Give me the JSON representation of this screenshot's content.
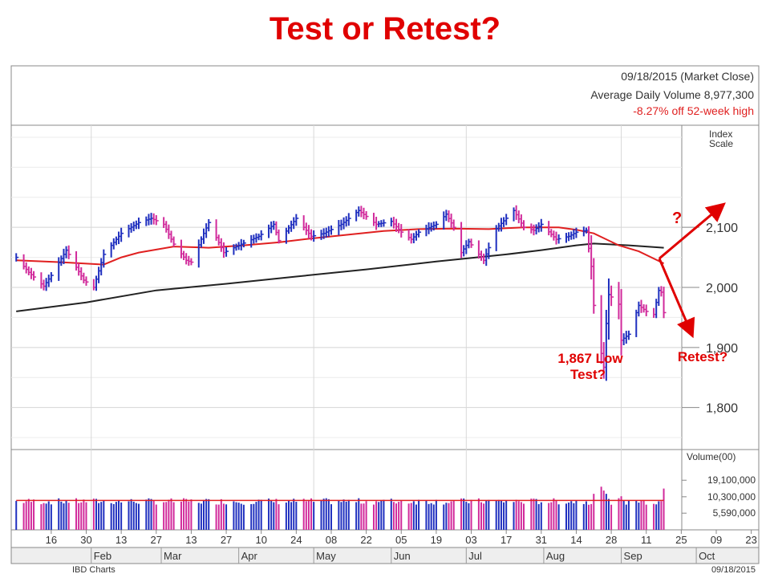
{
  "slide": {
    "title": "Test or Retest?"
  },
  "header": {
    "date_line": "09/18/2015 (Market Close)",
    "volume_line": "Average Daily Volume 8,977,300",
    "off_high_line": "-8.27% off 52-week high"
  },
  "footer": {
    "source": "IBD Charts",
    "date": "09/18/2015"
  },
  "colors": {
    "up": "#1f2fbf",
    "down": "#d12a9b",
    "ma50": "#e02020",
    "ma200": "#222222",
    "annotation": "#e00000"
  },
  "chart_data": {
    "type": "bar",
    "subtype": "ohlc",
    "y_axis_label": "Index\nScale",
    "ylim": [
      1730,
      2270
    ],
    "yticks": [
      "2,100",
      "2,000",
      "1,900",
      "1,800"
    ],
    "ytick_values": [
      2100,
      2000,
      1900,
      1800
    ],
    "x_range": [
      "2014-12-31",
      "2015-10-26"
    ],
    "x_day_ticks": [
      {
        "date": "2015-01-16",
        "label": "16"
      },
      {
        "date": "2015-01-30",
        "label": "30"
      },
      {
        "date": "2015-02-13",
        "label": "13"
      },
      {
        "date": "2015-02-27",
        "label": "27"
      },
      {
        "date": "2015-03-13",
        "label": "13"
      },
      {
        "date": "2015-03-27",
        "label": "27"
      },
      {
        "date": "2015-04-10",
        "label": "10"
      },
      {
        "date": "2015-04-24",
        "label": "24"
      },
      {
        "date": "2015-05-08",
        "label": "08"
      },
      {
        "date": "2015-05-22",
        "label": "22"
      },
      {
        "date": "2015-06-05",
        "label": "05"
      },
      {
        "date": "2015-06-19",
        "label": "19"
      },
      {
        "date": "2015-07-03",
        "label": "03"
      },
      {
        "date": "2015-07-17",
        "label": "17"
      },
      {
        "date": "2015-07-31",
        "label": "31"
      },
      {
        "date": "2015-08-14",
        "label": "14"
      },
      {
        "date": "2015-08-28",
        "label": "28"
      },
      {
        "date": "2015-09-11",
        "label": "11"
      },
      {
        "date": "2015-09-25",
        "label": "25"
      },
      {
        "date": "2015-10-09",
        "label": "09"
      },
      {
        "date": "2015-10-23",
        "label": "23"
      }
    ],
    "x_month_ticks": [
      {
        "date": "2015-02-01",
        "label": "Feb"
      },
      {
        "date": "2015-03-01",
        "label": "Mar"
      },
      {
        "date": "2015-04-01",
        "label": "Apr"
      },
      {
        "date": "2015-05-01",
        "label": "May"
      },
      {
        "date": "2015-06-01",
        "label": "Jun"
      },
      {
        "date": "2015-07-01",
        "label": "Jul"
      },
      {
        "date": "2015-08-01",
        "label": "Aug"
      },
      {
        "date": "2015-09-01",
        "label": "Sep"
      },
      {
        "date": "2015-10-01",
        "label": "Oct"
      }
    ],
    "price_keypoints": [
      [
        "2015-01-02",
        2050
      ],
      [
        "2015-01-07",
        2025
      ],
      [
        "2015-01-13",
        2002
      ],
      [
        "2015-01-16",
        2020
      ],
      [
        "2015-01-22",
        2062
      ],
      [
        "2015-01-29",
        2012
      ],
      [
        "2015-02-02",
        2000
      ],
      [
        "2015-02-06",
        2055
      ],
      [
        "2015-02-13",
        2090
      ],
      [
        "2015-02-20",
        2108
      ],
      [
        "2015-02-25",
        2115
      ],
      [
        "2015-03-02",
        2105
      ],
      [
        "2015-03-06",
        2072
      ],
      [
        "2015-03-11",
        2045
      ],
      [
        "2015-03-13",
        2042
      ],
      [
        "2015-03-18",
        2090
      ],
      [
        "2015-03-20",
        2108
      ],
      [
        "2015-03-26",
        2058
      ],
      [
        "2015-04-02",
        2072
      ],
      [
        "2015-04-09",
        2085
      ],
      [
        "2015-04-15",
        2105
      ],
      [
        "2015-04-17",
        2078
      ],
      [
        "2015-04-24",
        2115
      ],
      [
        "2015-04-30",
        2085
      ],
      [
        "2015-05-05",
        2090
      ],
      [
        "2015-05-12",
        2105
      ],
      [
        "2015-05-19",
        2128
      ],
      [
        "2015-05-26",
        2105
      ],
      [
        "2015-06-01",
        2110
      ],
      [
        "2015-06-05",
        2092
      ],
      [
        "2015-06-09",
        2080
      ],
      [
        "2015-06-12",
        2092
      ],
      [
        "2015-06-19",
        2105
      ],
      [
        "2015-06-23",
        2122
      ],
      [
        "2015-06-26",
        2100
      ],
      [
        "2015-06-29",
        2058
      ],
      [
        "2015-07-02",
        2076
      ],
      [
        "2015-07-08",
        2045
      ],
      [
        "2015-07-13",
        2098
      ],
      [
        "2015-07-20",
        2128
      ],
      [
        "2015-07-24",
        2100
      ],
      [
        "2015-07-28",
        2095
      ],
      [
        "2015-07-31",
        2105
      ],
      [
        "2015-08-06",
        2080
      ],
      [
        "2015-08-11",
        2085
      ],
      [
        "2015-08-14",
        2092
      ],
      [
        "2015-08-18",
        2095
      ],
      [
        "2015-08-20",
        2035
      ],
      [
        "2015-08-21",
        1970
      ],
      [
        "2015-08-24",
        1890
      ],
      [
        "2015-08-25",
        1867
      ],
      [
        "2015-08-26",
        1940
      ],
      [
        "2015-08-27",
        1988
      ],
      [
        "2015-08-31",
        1972
      ],
      [
        "2015-09-01",
        1912
      ],
      [
        "2015-09-04",
        1922
      ],
      [
        "2015-09-08",
        1970
      ],
      [
        "2015-09-11",
        1960
      ],
      [
        "2015-09-14",
        1955
      ],
      [
        "2015-09-16",
        1995
      ],
      [
        "2015-09-17",
        1992
      ],
      [
        "2015-09-18",
        1958
      ]
    ],
    "ma50": [
      [
        "2015-01-02",
        2045
      ],
      [
        "2015-01-20",
        2042
      ],
      [
        "2015-02-06",
        2038
      ],
      [
        "2015-02-13",
        2050
      ],
      [
        "2015-02-20",
        2058
      ],
      [
        "2015-03-06",
        2068
      ],
      [
        "2015-03-20",
        2066
      ],
      [
        "2015-04-03",
        2070
      ],
      [
        "2015-04-17",
        2075
      ],
      [
        "2015-05-01",
        2082
      ],
      [
        "2015-05-15",
        2088
      ],
      [
        "2015-05-29",
        2094
      ],
      [
        "2015-06-12",
        2097
      ],
      [
        "2015-06-26",
        2098
      ],
      [
        "2015-07-10",
        2097
      ],
      [
        "2015-07-24",
        2100
      ],
      [
        "2015-08-07",
        2100
      ],
      [
        "2015-08-14",
        2096
      ],
      [
        "2015-08-21",
        2090
      ],
      [
        "2015-08-31",
        2070
      ],
      [
        "2015-09-08",
        2060
      ],
      [
        "2015-09-18",
        2040
      ]
    ],
    "ma200": [
      [
        "2015-01-02",
        1960
      ],
      [
        "2015-01-30",
        1975
      ],
      [
        "2015-02-27",
        1995
      ],
      [
        "2015-03-27",
        2006
      ],
      [
        "2015-04-24",
        2018
      ],
      [
        "2015-05-22",
        2030
      ],
      [
        "2015-06-19",
        2043
      ],
      [
        "2015-07-17",
        2055
      ],
      [
        "2015-07-31",
        2062
      ],
      [
        "2015-08-14",
        2070
      ],
      [
        "2015-08-21",
        2073
      ],
      [
        "2015-09-04",
        2070
      ],
      [
        "2015-09-18",
        2066
      ]
    ],
    "volume": {
      "label": "Volume(00)",
      "yticks": [
        "19,100,000",
        "10,300,000",
        "5,590,000"
      ],
      "ytick_values": [
        19100000,
        10300000,
        5590000
      ],
      "ylim": [
        3000000,
        60000000
      ],
      "average": 8977300,
      "typical": 8500000,
      "spikes": [
        [
          "2015-08-21",
          11500000
        ],
        [
          "2015-08-24",
          15000000
        ],
        [
          "2015-08-25",
          13000000
        ],
        [
          "2015-08-26",
          11500000
        ],
        [
          "2015-09-01",
          10500000
        ],
        [
          "2015-09-18",
          14000000
        ]
      ]
    },
    "annotations": {
      "low_label": "1,867 Low",
      "low_label2": "Test?",
      "retest_label": "Retest?",
      "question_label": "?"
    }
  }
}
